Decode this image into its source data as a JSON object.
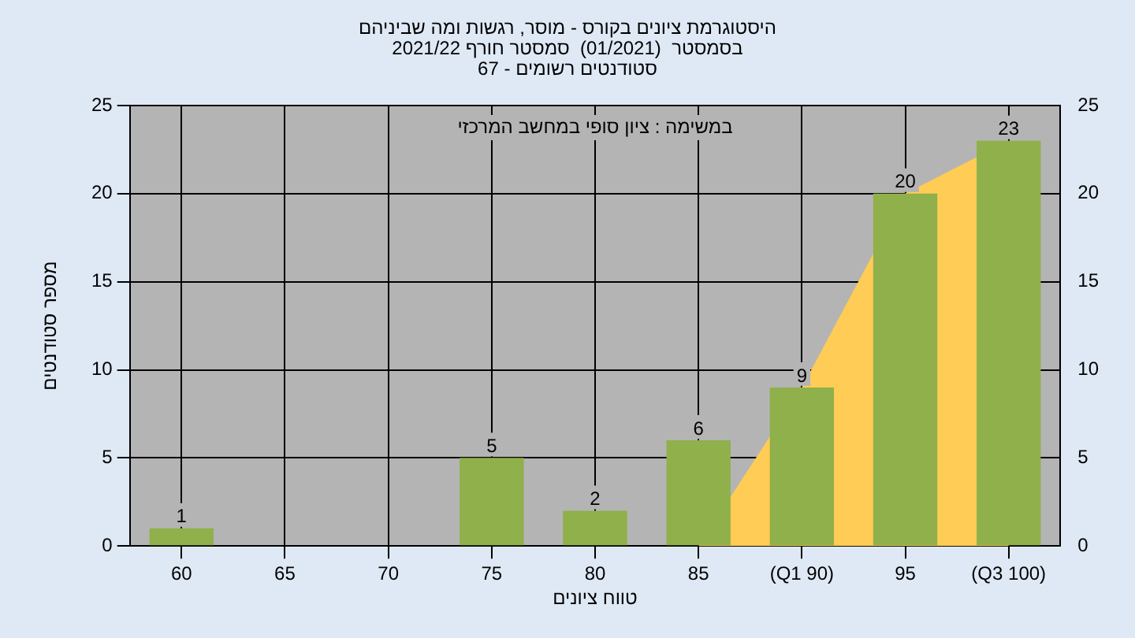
{
  "chart_data": {
    "type": "bar",
    "title": "היסטוגרמת ציונים בקורס - מוסר, רגשות ומה שביניהם",
    "subtitle": "בסמסטר  (01/2021)  סמסטר חורף 2021/22\nסטודנטים רשומים - 67",
    "xlabel": "טווח ציונים",
    "ylabel": "מספר סטודנטים",
    "annotations": [
      "במשימה : ציון סופי במחשב המרכזי"
    ],
    "categories": [
      "60",
      "65",
      "70",
      "75",
      "80",
      "85",
      "(Q1 90)",
      "95",
      "(Q3 100)"
    ],
    "series": [
      {
        "type": "area",
        "color": "#ffcc55",
        "values": [
          null,
          null,
          null,
          null,
          null,
          0,
          9,
          20,
          23
        ]
      },
      {
        "color": "#8fb04a",
        "values": [
          1,
          0,
          0,
          5,
          2,
          6,
          9,
          20,
          23
        ],
        "value_labels": [
          "1",
          null,
          null,
          "5",
          "2",
          "6",
          "9",
          "20",
          "23"
        ]
      }
    ],
    "ylim": [
      0,
      25
    ],
    "yticks": [
      0,
      5,
      10,
      15,
      20,
      25
    ],
    "y2lim": [
      0,
      25
    ],
    "y2ticks": [
      0,
      5,
      10,
      15,
      20,
      25
    ],
    "grid": true
  }
}
